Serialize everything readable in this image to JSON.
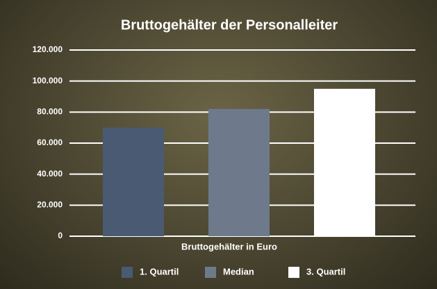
{
  "chart_data": {
    "type": "bar",
    "title": "Bruttogehälter der Personalleiter",
    "x_label": "Bruttogehälter in Euro",
    "categories": [
      null
    ],
    "series": [
      {
        "name": "1. Quartil",
        "color": "#4a5a72",
        "values": [
          70000
        ]
      },
      {
        "name": "Median",
        "color": "#6e7a8c",
        "values": [
          82000
        ]
      },
      {
        "name": "3. Quartil",
        "color": "#ffffff",
        "values": [
          95000
        ]
      }
    ],
    "ylim": [
      0,
      120000
    ],
    "yticks": [
      0,
      {
        "value": 20000,
        "label": "20.000"
      },
      {
        "value": 40000,
        "label": "40.000"
      },
      {
        "value": 60000,
        "label": "60.000"
      },
      {
        "value": 80000,
        "label": "80.000"
      },
      {
        "value": 100000,
        "label": "100.000"
      },
      {
        "value": 120000,
        "label": "120.000"
      }
    ],
    "grid": true
  }
}
